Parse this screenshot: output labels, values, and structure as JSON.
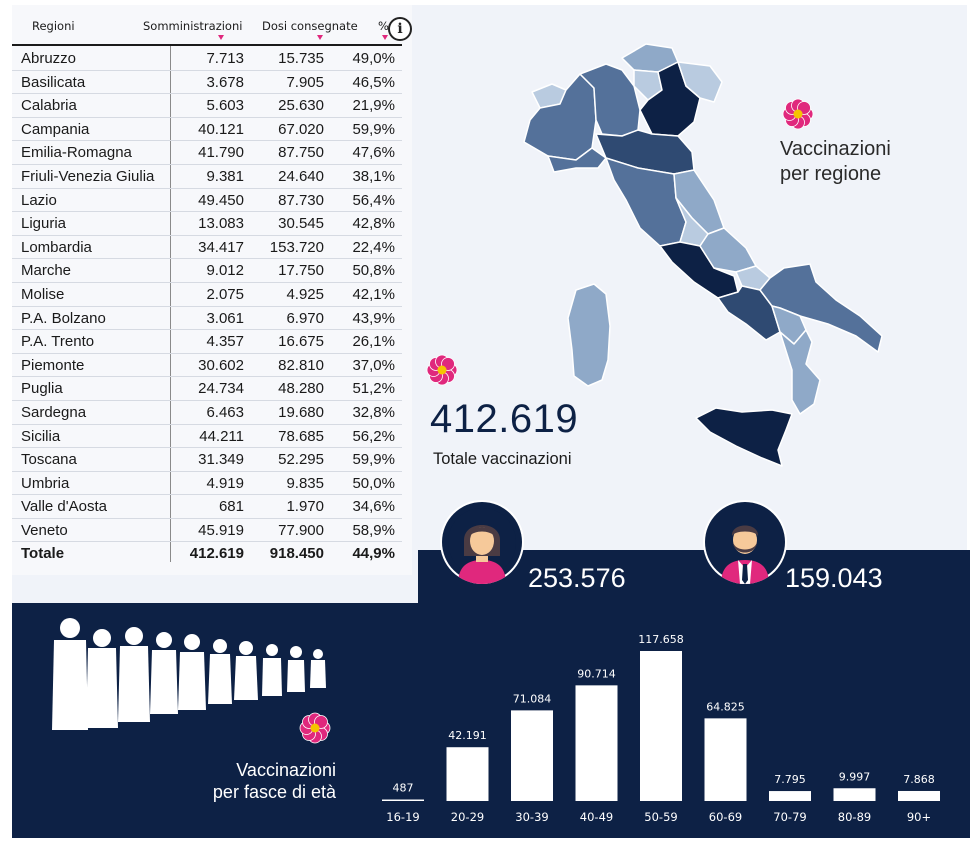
{
  "table": {
    "headers": {
      "region": "Regioni",
      "somministrazioni": "Somministrazioni",
      "dosi": "Dosi consegnate",
      "pct": "%"
    },
    "info_icon": "info-icon",
    "info_label": "i",
    "rows": [
      {
        "name": "Abruzzo",
        "somm": "7.713",
        "dosi": "15.735",
        "pct": "49,0%"
      },
      {
        "name": "Basilicata",
        "somm": "3.678",
        "dosi": "7.905",
        "pct": "46,5%"
      },
      {
        "name": "Calabria",
        "somm": "5.603",
        "dosi": "25.630",
        "pct": "21,9%"
      },
      {
        "name": "Campania",
        "somm": "40.121",
        "dosi": "67.020",
        "pct": "59,9%"
      },
      {
        "name": "Emilia-Romagna",
        "somm": "41.790",
        "dosi": "87.750",
        "pct": "47,6%"
      },
      {
        "name": "Friuli-Venezia Giulia",
        "somm": "9.381",
        "dosi": "24.640",
        "pct": "38,1%"
      },
      {
        "name": "Lazio",
        "somm": "49.450",
        "dosi": "87.730",
        "pct": "56,4%"
      },
      {
        "name": "Liguria",
        "somm": "13.083",
        "dosi": "30.545",
        "pct": "42,8%"
      },
      {
        "name": "Lombardia",
        "somm": "34.417",
        "dosi": "153.720",
        "pct": "22,4%"
      },
      {
        "name": "Marche",
        "somm": "9.012",
        "dosi": "17.750",
        "pct": "50,8%"
      },
      {
        "name": "Molise",
        "somm": "2.075",
        "dosi": "4.925",
        "pct": "42,1%"
      },
      {
        "name": "P.A. Bolzano",
        "somm": "3.061",
        "dosi": "6.970",
        "pct": "43,9%"
      },
      {
        "name": "P.A. Trento",
        "somm": "4.357",
        "dosi": "16.675",
        "pct": "26,1%"
      },
      {
        "name": "Piemonte",
        "somm": "30.602",
        "dosi": "82.810",
        "pct": "37,0%"
      },
      {
        "name": "Puglia",
        "somm": "24.734",
        "dosi": "48.280",
        "pct": "51,2%"
      },
      {
        "name": "Sardegna",
        "somm": "6.463",
        "dosi": "19.680",
        "pct": "32,8%"
      },
      {
        "name": "Sicilia",
        "somm": "44.211",
        "dosi": "78.685",
        "pct": "56,2%"
      },
      {
        "name": "Toscana",
        "somm": "31.349",
        "dosi": "52.295",
        "pct": "59,9%"
      },
      {
        "name": "Umbria",
        "somm": "4.919",
        "dosi": "9.835",
        "pct": "50,0%"
      },
      {
        "name": "Valle d'Aosta",
        "somm": "681",
        "dosi": "1.970",
        "pct": "34,6%"
      },
      {
        "name": "Veneto",
        "somm": "45.919",
        "dosi": "77.900",
        "pct": "58,9%"
      }
    ],
    "total": {
      "name": "Totale",
      "somm": "412.619",
      "dosi": "918.450",
      "pct": "44,9%"
    }
  },
  "map": {
    "title": "Vaccinazioni\nper regione",
    "icon": "flower-icon",
    "colors": {
      "darkest": "#0d2145",
      "dark": "#2f4a72",
      "mid": "#54719a",
      "light": "#8fa9c8",
      "lightest": "#b9cbe0"
    }
  },
  "summary": {
    "total_value": "412.619",
    "total_label": "Totale vaccinazioni"
  },
  "gender": {
    "female_value": "253.576",
    "male_value": "159.043",
    "female_icon": "woman-avatar-icon",
    "male_icon": "man-avatar-icon",
    "accent": "#e0287d"
  },
  "age": {
    "title": "Vaccinazioni\nper fasce di età",
    "crowd_icon": "crowd-silhouette-icon"
  },
  "colors": {
    "navy": "#0d2145",
    "magenta": "#e0287d",
    "panel": "#f0f3f9"
  },
  "chart_data": {
    "type": "bar",
    "title": "Vaccinazioni per fasce di età",
    "categories": [
      "16-19",
      "20-29",
      "30-39",
      "40-49",
      "50-59",
      "60-69",
      "70-79",
      "80-89",
      "90+"
    ],
    "values": [
      487,
      42191,
      71084,
      90714,
      117658,
      64825,
      7795,
      9997,
      7868
    ],
    "value_labels": [
      "487",
      "42.191",
      "71.084",
      "90.714",
      "117.658",
      "64.825",
      "7.795",
      "9.997",
      "7.868"
    ],
    "ylim": [
      0,
      117658
    ],
    "grid": false,
    "bar_color": "#ffffff",
    "background": "#0d2145"
  }
}
